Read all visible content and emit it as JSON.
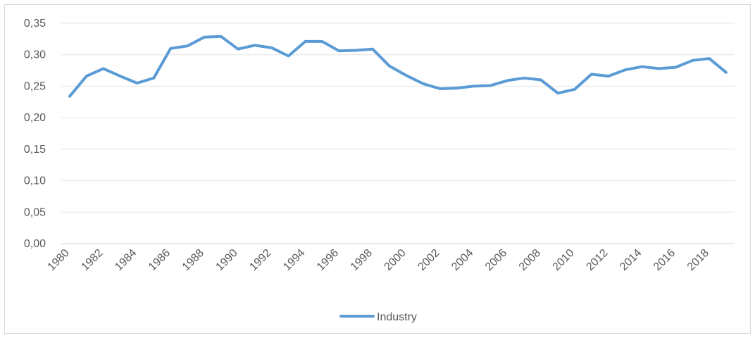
{
  "chart_data": {
    "type": "line",
    "x": [
      1980,
      1981,
      1982,
      1983,
      1984,
      1985,
      1986,
      1987,
      1988,
      1989,
      1990,
      1991,
      1992,
      1993,
      1994,
      1995,
      1996,
      1997,
      1998,
      1999,
      2000,
      2001,
      2002,
      2003,
      2004,
      2005,
      2006,
      2007,
      2008,
      2009,
      2010,
      2011,
      2012,
      2013,
      2014,
      2015,
      2016,
      2017,
      2018,
      2019
    ],
    "x_tick_labels": [
      "1980",
      "1982",
      "1984",
      "1986",
      "1988",
      "1990",
      "1992",
      "1994",
      "1996",
      "1998",
      "2000",
      "2002",
      "2004",
      "2006",
      "2008",
      "2010",
      "2012",
      "2014",
      "2016",
      "2018"
    ],
    "y_tick_labels": [
      "0,00",
      "0,05",
      "0,10",
      "0,15",
      "0,20",
      "0,25",
      "0,30",
      "0,35"
    ],
    "ylim": [
      0,
      0.35
    ],
    "series": [
      {
        "name": "Industry",
        "color": "#5b9bd5",
        "values": [
          0.234,
          0.266,
          0.278,
          0.266,
          0.255,
          0.263,
          0.31,
          0.314,
          0.328,
          0.329,
          0.309,
          0.315,
          0.311,
          0.298,
          0.321,
          0.321,
          0.306,
          0.307,
          0.309,
          0.282,
          0.267,
          0.254,
          0.246,
          0.247,
          0.25,
          0.251,
          0.259,
          0.263,
          0.26,
          0.239,
          0.245,
          0.269,
          0.266,
          0.276,
          0.281,
          0.278,
          0.28,
          0.291,
          0.294,
          0.272
        ]
      }
    ],
    "title": "",
    "xlabel": "",
    "ylabel": "",
    "grid": true,
    "legend": "bottom"
  }
}
